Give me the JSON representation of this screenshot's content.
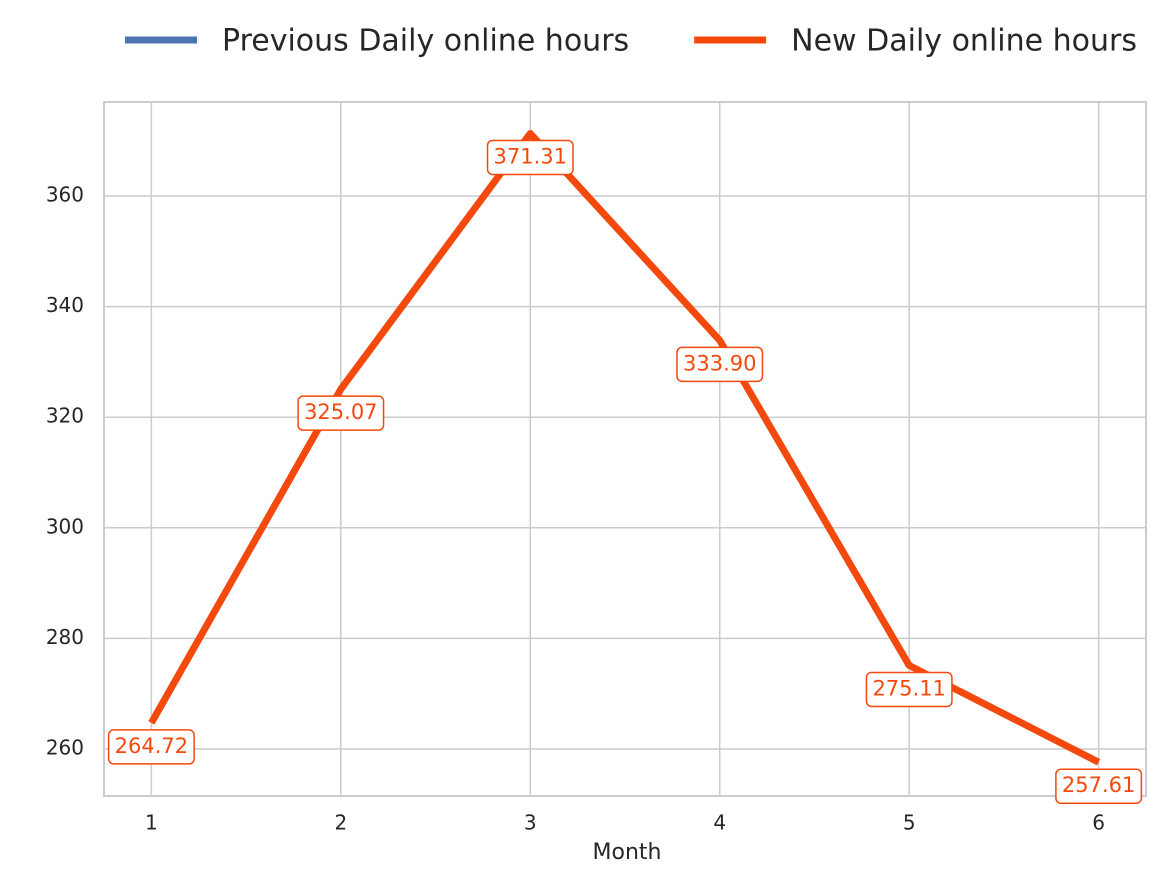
{
  "chart_data": {
    "type": "line",
    "xlabel": "Month",
    "x": [
      1,
      2,
      3,
      4,
      5,
      6
    ],
    "series": [
      {
        "name": "Previous Daily online hours",
        "color": "#4c72b0",
        "values": [
          null,
          null,
          null,
          null,
          null,
          null
        ]
      },
      {
        "name": "New Daily online hours",
        "color": "#f4490c",
        "values": [
          264.72,
          325.07,
          371.31,
          333.9,
          275.11,
          257.61
        ],
        "value_labels": [
          "264.72",
          "325.07",
          "371.31",
          "333.90",
          "275.11",
          "257.61"
        ]
      }
    ],
    "xlim": [
      0.75,
      6.25
    ],
    "xticks": [
      1,
      2,
      3,
      4,
      5,
      6
    ],
    "ylim": [
      251.5,
      377
    ],
    "yticks": [
      260,
      280,
      300,
      320,
      340,
      360
    ],
    "grid": true,
    "legend": "top"
  }
}
